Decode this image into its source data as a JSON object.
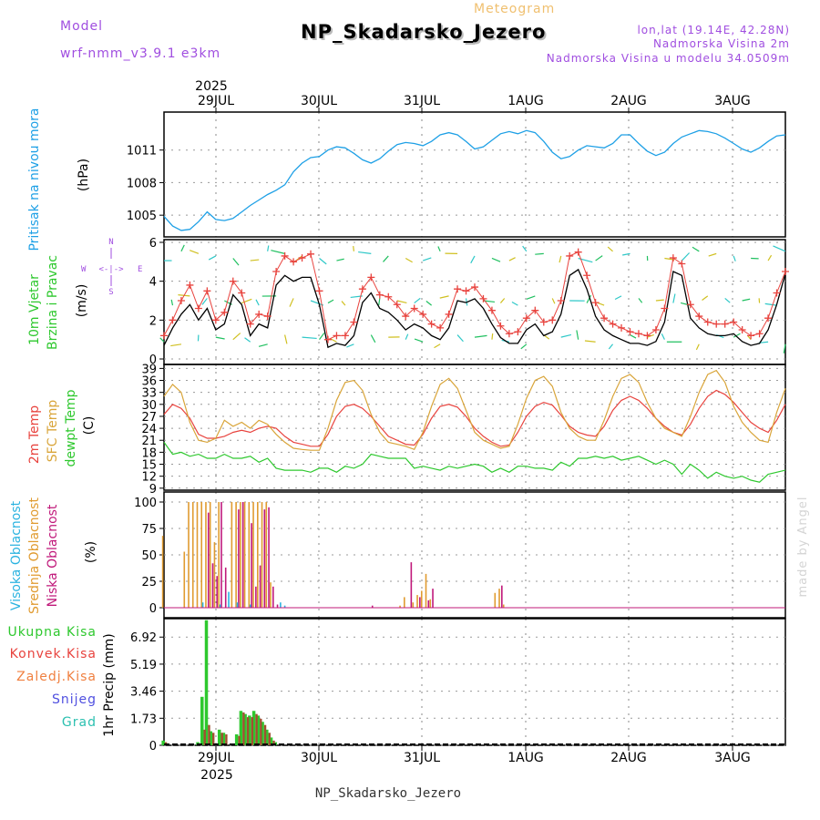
{
  "header": {
    "model_label": "Model",
    "model_name": "wrf-nmm_v3.9.1 e3km",
    "meteogram_label": "Meteogram",
    "station": "NP_Skadarsko_Jezero",
    "lonlat": "lon,lat (19.14E, 42.28N)",
    "elevation": "Nadmorska Visina 2m",
    "model_elevation": "Nadmorska Visina u modelu 34.0509m",
    "credit": "made by Angel",
    "footer_station": "NP_Skadarsko_Jezero"
  },
  "time_axis": {
    "year": "2025",
    "days": [
      "29JUL",
      "30JUL",
      "31JUL",
      "1AUG",
      "2AUG",
      "3AUG"
    ]
  },
  "panel_labels": {
    "pressure": {
      "name": "Pritisak na nivou mora",
      "unit": "(hPa)"
    },
    "wind": {
      "name1": "10m Vjetar",
      "name2": "Brzina i Pravac",
      "unit": "(m/s)",
      "compass_n": "N",
      "compass_s": "S",
      "compass_e": "E",
      "compass_w": "W",
      "compass_arrows": "<-|->"
    },
    "temp": {
      "name1": "2m Temp",
      "name2": "SFC Temp",
      "name3": "dewpt Temp",
      "unit": "(C)"
    },
    "cloud": {
      "name1": "Visoka Oblacnost",
      "name2": "Srednja Oblacnost",
      "name3": "Niska Oblacnost",
      "unit": "(%)"
    },
    "precip": {
      "name": "1hr Precip (mm)",
      "legend": [
        "Ukupna Kisa",
        "Konvek.Kisa",
        "Zaledj.Kisa",
        "Snijeg",
        "Grad"
      ]
    }
  },
  "colors": {
    "pressure": "#1ea0e6",
    "wind_speed": "#000000",
    "wind_gust": "#e8433e",
    "temp2m": "#e8433e",
    "sfc": "#d9a53a",
    "dewpoint": "#2ec82e",
    "cloud_high": "#2bb3e0",
    "cloud_mid": "#e09b30",
    "cloud_low": "#c0187a",
    "rain_total": "#2ec82e",
    "rain_conv": "#a05030",
    "label_model": "#a04ee0",
    "label_meteogram": "#f0c070"
  },
  "chart_data": [
    {
      "type": "line",
      "title": "Pritisak na nivou mora",
      "ylabel": "(hPa)",
      "yticks": [
        "1005",
        "1008",
        "1011"
      ],
      "ylim": [
        1003,
        1014.5
      ],
      "x_hours": [
        0,
        2,
        4,
        6,
        8,
        10,
        12,
        14,
        16,
        18,
        20,
        22,
        24,
        26,
        28,
        30,
        32,
        34,
        36,
        38,
        40,
        42,
        44,
        46,
        48,
        50,
        52,
        54,
        56,
        58,
        60,
        62,
        64,
        66,
        68,
        70,
        72,
        74,
        76,
        78,
        80,
        82,
        84,
        86,
        88,
        90,
        92,
        94,
        96,
        98,
        100,
        102,
        104,
        106,
        108,
        110,
        112,
        114,
        116,
        118,
        120,
        122,
        124,
        126,
        128,
        130,
        132,
        134,
        136,
        138,
        140,
        142,
        144
      ],
      "values": [
        1004.9,
        1004.0,
        1003.6,
        1003.7,
        1004.4,
        1005.3,
        1004.6,
        1004.5,
        1004.7,
        1005.3,
        1005.9,
        1006.4,
        1006.9,
        1007.3,
        1007.8,
        1009.0,
        1009.8,
        1010.3,
        1010.4,
        1011.0,
        1011.3,
        1011.2,
        1010.7,
        1010.1,
        1009.8,
        1010.2,
        1010.9,
        1011.5,
        1011.7,
        1011.6,
        1011.4,
        1011.8,
        1012.4,
        1012.6,
        1012.4,
        1011.8,
        1011.1,
        1011.3,
        1011.9,
        1012.5,
        1012.7,
        1012.5,
        1012.8,
        1012.6,
        1011.8,
        1010.8,
        1010.2,
        1010.4,
        1011.0,
        1011.4,
        1011.3,
        1011.2,
        1011.6,
        1012.4,
        1012.4,
        1011.6,
        1010.9,
        1010.5,
        1010.8,
        1011.6,
        1012.2,
        1012.5,
        1012.8,
        1012.7,
        1012.5,
        1012.1,
        1011.6,
        1011.1,
        1010.8,
        1011.2,
        1011.8,
        1012.3,
        1012.4
      ]
    },
    {
      "type": "line",
      "title": "10m Vjetar Brzina i Pravac",
      "ylabel": "(m/s)",
      "yticks": [
        "0",
        "2",
        "4",
        "6"
      ],
      "ylim": [
        0,
        6
      ],
      "x_hours": [
        0,
        2,
        4,
        6,
        8,
        10,
        12,
        14,
        16,
        18,
        20,
        22,
        24,
        26,
        28,
        30,
        32,
        34,
        36,
        38,
        40,
        42,
        44,
        46,
        48,
        50,
        52,
        54,
        56,
        58,
        60,
        62,
        64,
        66,
        68,
        70,
        72,
        74,
        76,
        78,
        80,
        82,
        84,
        86,
        88,
        90,
        92,
        94,
        96,
        98,
        100,
        102,
        104,
        106,
        108,
        110,
        112,
        114,
        116,
        118,
        120,
        122,
        124,
        126,
        128,
        130,
        132,
        134,
        136,
        138,
        140,
        142,
        144
      ],
      "series": [
        {
          "name": "speed",
          "values": [
            0.7,
            1.6,
            2.3,
            2.8,
            2.0,
            2.6,
            1.5,
            1.8,
            3.3,
            2.8,
            1.2,
            1.8,
            1.6,
            3.8,
            4.3,
            4.0,
            4.2,
            4.2,
            2.8,
            0.6,
            0.8,
            0.7,
            1.2,
            2.9,
            3.4,
            2.6,
            2.4,
            2.0,
            1.5,
            1.8,
            1.6,
            1.2,
            1.0,
            1.6,
            3.0,
            2.9,
            3.1,
            2.6,
            1.8,
            1.1,
            0.8,
            0.8,
            1.5,
            1.8,
            1.2,
            1.4,
            2.3,
            4.3,
            4.6,
            3.6,
            2.2,
            1.5,
            1.2,
            1.0,
            0.8,
            0.8,
            0.7,
            0.9,
            1.9,
            4.5,
            4.3,
            2.1,
            1.6,
            1.3,
            1.2,
            1.2,
            1.3,
            0.9,
            0.7,
            0.8,
            1.5,
            2.8,
            4.4
          ]
        },
        {
          "name": "gust",
          "values": [
            1.2,
            2.0,
            3.0,
            3.8,
            2.6,
            3.5,
            2.0,
            2.4,
            4.0,
            3.4,
            1.8,
            2.3,
            2.2,
            4.5,
            5.3,
            5.0,
            5.2,
            5.4,
            3.5,
            1.0,
            1.2,
            1.2,
            1.9,
            3.6,
            4.2,
            3.3,
            3.2,
            2.8,
            2.2,
            2.6,
            2.3,
            1.8,
            1.6,
            2.3,
            3.6,
            3.5,
            3.7,
            3.1,
            2.5,
            1.7,
            1.3,
            1.4,
            2.1,
            2.5,
            1.9,
            2.0,
            3.0,
            5.3,
            5.5,
            4.3,
            2.9,
            2.1,
            1.8,
            1.6,
            1.4,
            1.3,
            1.2,
            1.5,
            2.6,
            5.2,
            4.9,
            2.8,
            2.2,
            1.9,
            1.8,
            1.8,
            1.9,
            1.5,
            1.2,
            1.3,
            2.1,
            3.4,
            4.5
          ]
        }
      ]
    },
    {
      "type": "line",
      "title": "2m Temp / SFC Temp / dewpt Temp",
      "ylabel": "(C)",
      "yticks": [
        "9",
        "12",
        "15",
        "18",
        "21",
        "24",
        "27",
        "30",
        "33",
        "36",
        "39"
      ],
      "ylim": [
        8.5,
        40
      ],
      "x_hours": [
        0,
        2,
        4,
        6,
        8,
        10,
        12,
        14,
        16,
        18,
        20,
        22,
        24,
        26,
        28,
        30,
        32,
        34,
        36,
        38,
        40,
        42,
        44,
        46,
        48,
        50,
        52,
        54,
        56,
        58,
        60,
        62,
        64,
        66,
        68,
        70,
        72,
        74,
        76,
        78,
        80,
        82,
        84,
        86,
        88,
        90,
        92,
        94,
        96,
        98,
        100,
        102,
        104,
        106,
        108,
        110,
        112,
        114,
        116,
        118,
        120,
        122,
        124,
        126,
        128,
        130,
        132,
        134,
        136,
        138,
        140,
        142,
        144
      ],
      "series": [
        {
          "name": "2m Temp",
          "values": [
            27.5,
            30.0,
            29.0,
            26.5,
            22.5,
            21.5,
            21.5,
            22.0,
            23.0,
            23.5,
            23.0,
            24.0,
            24.5,
            24.0,
            22.0,
            20.5,
            20.0,
            19.5,
            19.5,
            22.5,
            27.0,
            29.5,
            30.0,
            29.0,
            27.0,
            24.5,
            22.0,
            21.0,
            20.0,
            19.8,
            22.5,
            26.5,
            29.5,
            30.0,
            29.3,
            27.0,
            24.0,
            22.0,
            20.5,
            19.5,
            19.8,
            23.0,
            27.0,
            29.5,
            30.5,
            29.8,
            27.3,
            24.5,
            23.0,
            22.3,
            22.0,
            24.5,
            28.5,
            31.0,
            32.0,
            31.0,
            29.0,
            26.5,
            24.5,
            23.0,
            22.3,
            25.0,
            29.0,
            32.0,
            33.5,
            32.5,
            30.5,
            28.0,
            25.5,
            24.0,
            23.0,
            26.0,
            30.0
          ]
        },
        {
          "name": "SFC Temp",
          "values": [
            32.0,
            35.0,
            33.0,
            25.5,
            21.0,
            20.5,
            21.5,
            26.0,
            24.5,
            25.5,
            24.0,
            26.0,
            25.0,
            22.5,
            20.5,
            19.0,
            18.7,
            18.5,
            18.5,
            24.0,
            31.0,
            35.5,
            36.0,
            33.5,
            27.5,
            23.0,
            20.5,
            20.0,
            19.5,
            18.7,
            23.0,
            29.5,
            35.0,
            36.5,
            34.0,
            28.5,
            23.0,
            21.0,
            20.0,
            19.0,
            19.5,
            25.0,
            31.5,
            36.0,
            37.0,
            34.5,
            28.0,
            24.0,
            22.0,
            21.0,
            21.0,
            26.0,
            32.0,
            36.5,
            37.5,
            35.5,
            30.5,
            26.5,
            24.0,
            23.0,
            22.0,
            27.0,
            33.0,
            37.5,
            38.5,
            35.5,
            29.5,
            25.5,
            23.0,
            21.0,
            20.5,
            28.0,
            34.0
          ]
        },
        {
          "name": "dewpt Temp",
          "values": [
            20.5,
            17.5,
            18.0,
            17.0,
            17.5,
            16.5,
            16.5,
            17.5,
            16.5,
            16.5,
            17.0,
            15.5,
            16.5,
            14.0,
            13.5,
            13.5,
            13.5,
            13.0,
            14.0,
            14.0,
            13.0,
            14.5,
            14.0,
            15.0,
            17.5,
            17.0,
            16.5,
            16.5,
            16.5,
            14.0,
            14.5,
            14.0,
            13.5,
            14.5,
            14.0,
            14.5,
            15.0,
            14.5,
            13.0,
            14.0,
            13.0,
            14.5,
            14.5,
            14.0,
            14.0,
            13.5,
            15.5,
            14.5,
            16.5,
            16.5,
            17.0,
            16.5,
            17.0,
            16.0,
            16.5,
            17.0,
            16.0,
            15.0,
            16.0,
            15.0,
            12.5,
            15.0,
            13.5,
            11.5,
            13.0,
            12.0,
            11.5,
            12.0,
            11.0,
            10.5,
            12.5,
            13.0,
            13.5
          ]
        }
      ]
    },
    {
      "type": "bar",
      "title": "Visoka / Srednja / Niska Oblacnost",
      "ylabel": "(%)",
      "yticks": [
        "0",
        "25",
        "50",
        "75",
        "100"
      ],
      "ylim": [
        0,
        100
      ],
      "series": [
        {
          "name": "Srednja Oblacnost",
          "hours": [
            0,
            5,
            6,
            7,
            8,
            9,
            10,
            11,
            12,
            13,
            16,
            17,
            18,
            19,
            20,
            21,
            22,
            23,
            24,
            25
          ],
          "values": [
            68,
            53,
            100,
            100,
            100,
            100,
            100,
            100,
            62,
            100,
            100,
            100,
            100,
            100,
            100,
            100,
            100,
            100,
            100,
            24
          ]
        },
        {
          "name": "Niska Oblacnost",
          "hours": [
            10,
            11,
            12,
            13,
            14,
            17,
            18,
            20,
            21,
            22,
            23,
            24,
            25,
            26
          ],
          "values": [
            90,
            42,
            30,
            100,
            38,
            93,
            100,
            80,
            20,
            40,
            93,
            95,
            20,
            3
          ]
        },
        {
          "name": "Visoka Oblacnost",
          "hours": [
            9,
            13,
            15,
            17,
            20,
            27,
            28
          ],
          "values": [
            5,
            3,
            15,
            5,
            3,
            5,
            2
          ]
        },
        {
          "name": "Srednja Oblacnost 2",
          "hours": [
            55,
            56,
            58,
            59,
            60,
            61,
            62,
            77,
            78,
            79
          ],
          "values": [
            2,
            10,
            5,
            12,
            16,
            32,
            8,
            14,
            18,
            3
          ]
        },
        {
          "name": "Niska Oblacnost 2",
          "hours": [
            48,
            57,
            59,
            61,
            62,
            78
          ],
          "values": [
            2,
            43,
            10,
            7,
            18,
            21
          ]
        }
      ]
    },
    {
      "type": "bar",
      "title": "1hr Precip",
      "ylabel": "1hr Precip (mm)",
      "yticks": [
        "0",
        "1.73",
        "3.46",
        "5.19",
        "6.92"
      ],
      "ylim": [
        0,
        8.1
      ],
      "series": [
        {
          "name": "Ukupna Kisa",
          "hours": [
            0,
            8,
            9,
            10,
            11,
            13,
            14,
            17,
            18,
            19,
            20,
            21,
            22,
            23,
            24,
            25,
            26
          ],
          "values": [
            0.3,
            0.2,
            3.1,
            8.0,
            0.9,
            1.0,
            0.8,
            0.7,
            2.2,
            2.0,
            1.9,
            2.2,
            1.9,
            1.5,
            1.0,
            0.5,
            0.2
          ]
        },
        {
          "name": "Konvek.Kisa",
          "hours": [
            0,
            9,
            10,
            11,
            13,
            14,
            17,
            18,
            19,
            20,
            21,
            22,
            23,
            24,
            25
          ],
          "values": [
            0.2,
            1.0,
            1.3,
            0.8,
            0.8,
            0.7,
            0.6,
            2.1,
            1.8,
            1.8,
            2.0,
            1.7,
            1.3,
            0.8,
            0.3
          ]
        }
      ]
    }
  ]
}
